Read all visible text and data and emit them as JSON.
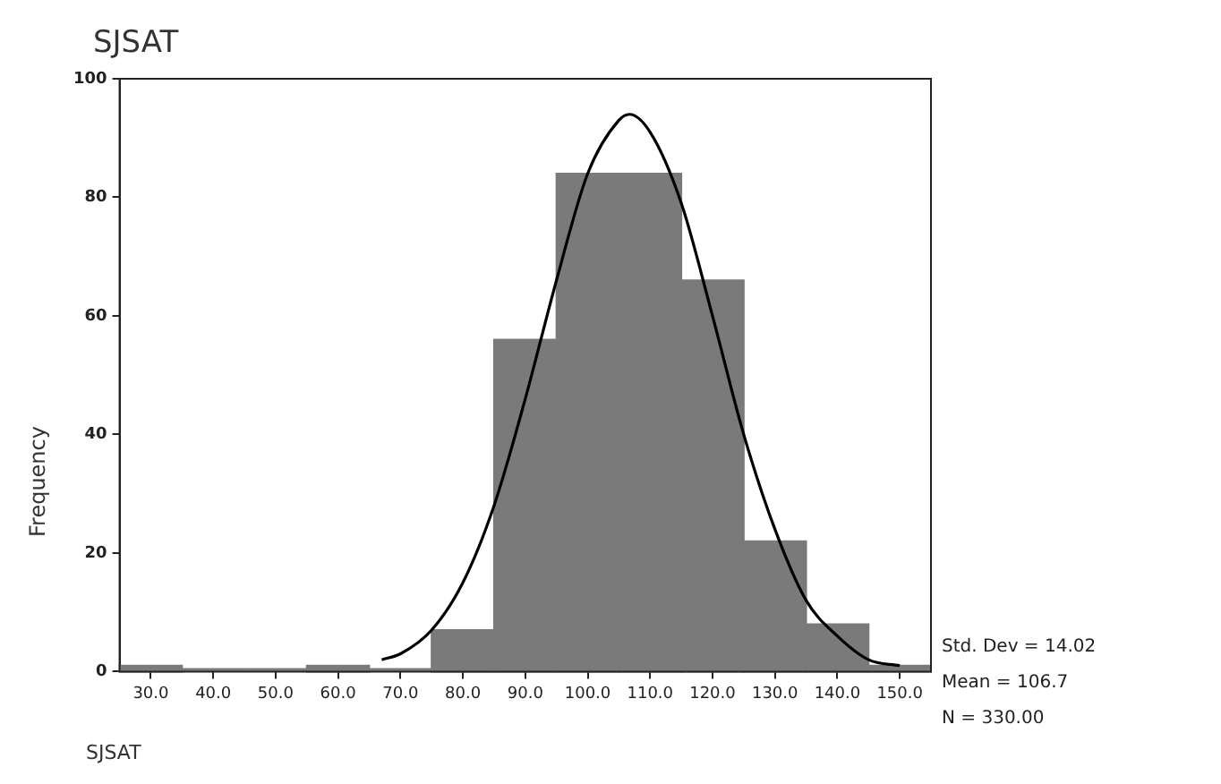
{
  "chart_data": {
    "type": "histogram",
    "title": "SJSAT",
    "xlabel": "SJSAT",
    "ylabel": "Frequency",
    "bins": [
      25,
      35,
      45,
      55,
      65,
      75,
      85,
      95,
      105,
      115,
      125,
      135,
      145,
      155
    ],
    "values": [
      1,
      0,
      0,
      1,
      0,
      7,
      56,
      84,
      84,
      66,
      22,
      8,
      1
    ],
    "color": "#7a7a7a",
    "series": [
      {
        "type": "line",
        "color": "#000000",
        "marker": "none",
        "x": [
          67,
          70,
          75,
          80,
          85,
          90,
          95,
          100,
          105,
          106.7,
          110,
          115,
          120,
          125,
          130,
          135,
          140,
          145,
          150
        ],
        "values": [
          2,
          3,
          7,
          15,
          28,
          46,
          66,
          84,
          93,
          94,
          91,
          79,
          60,
          40,
          24,
          12,
          6,
          2,
          1
        ]
      }
    ],
    "xlim": [
      25,
      155
    ],
    "xticks": [
      {
        "value": 30,
        "label": "30.0"
      },
      {
        "value": 40,
        "label": "40.0"
      },
      {
        "value": 50,
        "label": "50.0"
      },
      {
        "value": 60,
        "label": "60.0"
      },
      {
        "value": 70,
        "label": "70.0"
      },
      {
        "value": 80,
        "label": "80.0"
      },
      {
        "value": 90,
        "label": "90.0"
      },
      {
        "value": 100,
        "label": "100.0"
      },
      {
        "value": 110,
        "label": "110.0"
      },
      {
        "value": 120,
        "label": "120.0"
      },
      {
        "value": 130,
        "label": "130.0"
      },
      {
        "value": 140,
        "label": "140.0"
      },
      {
        "value": 150,
        "label": "150.0"
      }
    ],
    "ylim": [
      0,
      100
    ],
    "yticks": [
      0,
      20,
      40,
      60,
      80,
      100
    ],
    "grid": false,
    "legend": false,
    "annotations": [
      "Std. Dev = 14.02",
      "Mean = 106.7",
      "N = 330.00"
    ]
  }
}
